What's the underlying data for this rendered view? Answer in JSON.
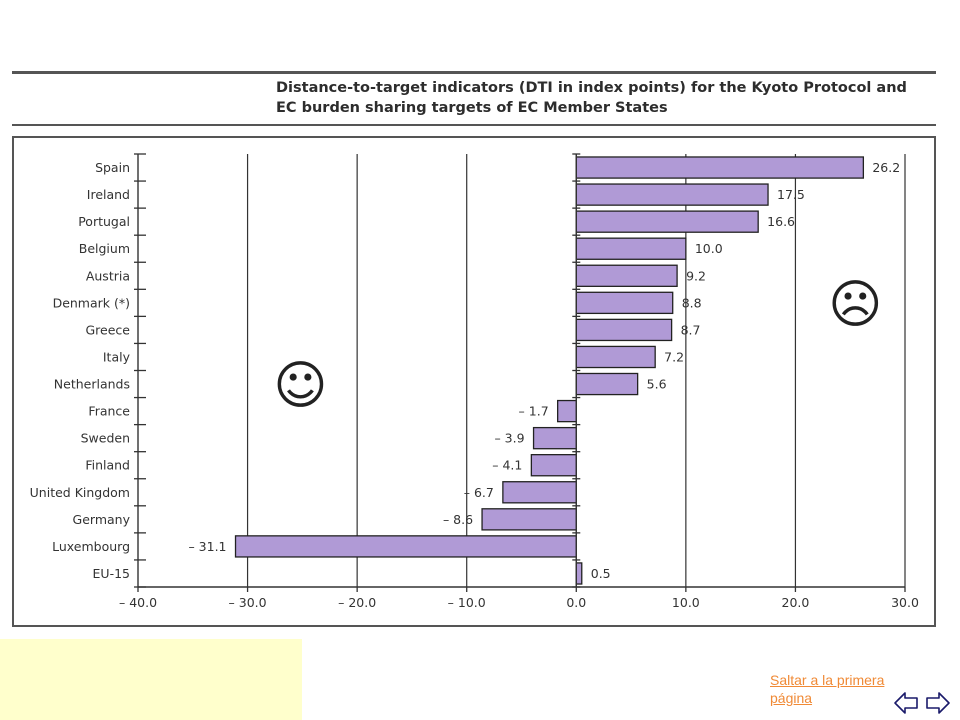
{
  "chart_data": {
    "type": "bar",
    "orientation": "horizontal",
    "title_lines": [
      "Distance-to-target indicators (DTI in index points) for the Kyoto Protocol and",
      "EC burden sharing targets of EC Member States"
    ],
    "categories": [
      "Spain",
      "Ireland",
      "Portugal",
      "Belgium",
      "Austria",
      "Denmark (*)",
      "Greece",
      "Italy",
      "Netherlands",
      "France",
      "Sweden",
      "Finland",
      "United Kingdom",
      "Germany",
      "Luxembourg",
      "EU-15"
    ],
    "values": [
      26.2,
      17.5,
      16.6,
      10.0,
      9.2,
      8.8,
      8.7,
      7.2,
      5.6,
      -1.7,
      -3.9,
      -4.1,
      -6.7,
      -8.6,
      -31.1,
      0.5
    ],
    "value_labels": [
      "26.2",
      "17.5",
      "16.6",
      "10.0",
      "9.2",
      "8.8",
      "8.7",
      "7.2",
      "5.6",
      "– 1.7",
      "– 3.9",
      "– 4.1",
      "– 6.7",
      "– 8.6",
      "– 31.1",
      "0.5"
    ],
    "xlim": [
      -40,
      30
    ],
    "xticks": [
      -40,
      -30,
      -20,
      -10,
      0,
      10,
      20,
      30
    ],
    "xtick_labels": [
      "– 40.0",
      "– 30.0",
      "– 20.0",
      "– 10.0",
      "0.0",
      "10.0",
      "20.0",
      "30.0"
    ],
    "grid": true,
    "bar_color": "#b09ad6",
    "annotations": [
      {
        "symbol": "☺",
        "meaning": "happy-face",
        "x": -25,
        "position": "left-middle"
      },
      {
        "symbol": "☹",
        "meaning": "sad-face",
        "x": 25,
        "position": "right-upper"
      }
    ]
  },
  "navigation": {
    "link_text": "Saltar a la primera página",
    "back_icon": "arrow-left-icon",
    "forward_icon": "arrow-right-icon"
  },
  "colors": {
    "link": "#f08a36",
    "panel": "#ffffcc",
    "frame": "#555555"
  }
}
